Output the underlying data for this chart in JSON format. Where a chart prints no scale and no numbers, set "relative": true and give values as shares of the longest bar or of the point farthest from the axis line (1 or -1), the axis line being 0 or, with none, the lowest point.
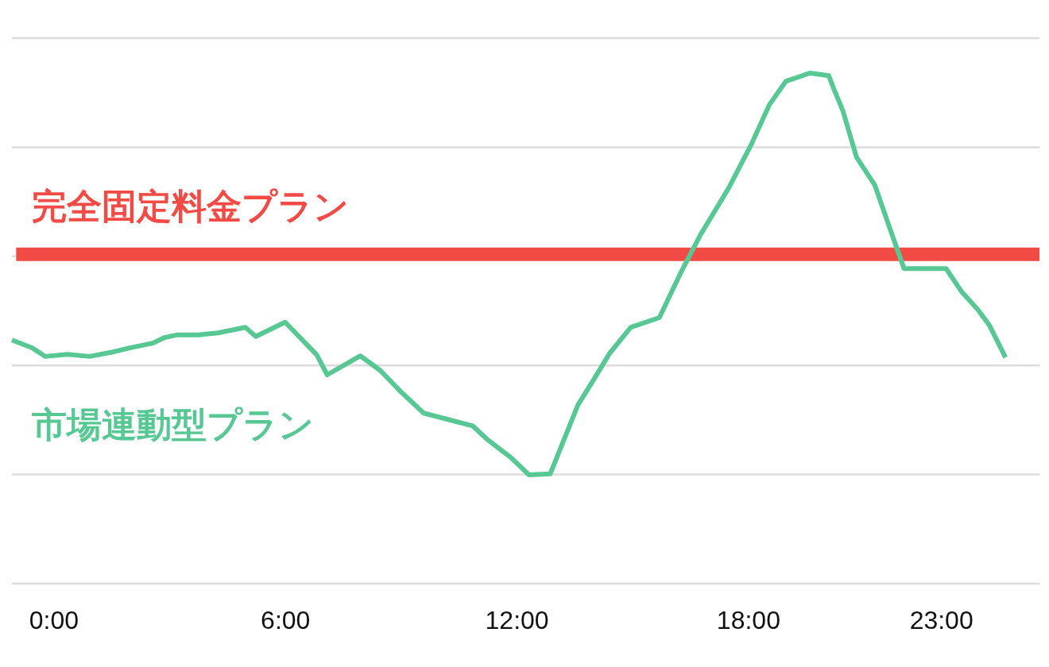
{
  "chart_data": {
    "type": "line",
    "relative": true,
    "grid": true,
    "x": [
      -1.09,
      -0.57,
      -0.23,
      0.35,
      0.92,
      1.48,
      1.99,
      2.56,
      2.87,
      3.18,
      3.73,
      4.25,
      4.96,
      5.23,
      5.99,
      6.81,
      7.08,
      7.94,
      8.45,
      8.96,
      9.58,
      10.85,
      11.22,
      11.84,
      12.31,
      12.86,
      13.58,
      13.99,
      14.4,
      14.95,
      15.69,
      16.25,
      16.76,
      17.48,
      18.09,
      18.54,
      18.97,
      19.59,
      20.08,
      20.21,
      20.45,
      20.8,
      21.27,
      21.68,
      22.03,
      23.12,
      23.53,
      23.94,
      24.25,
      24.66
    ],
    "series": [
      {
        "name": "完全固定料金プラン",
        "color": "#f24a45",
        "x": [
          -0.98,
          25.54
        ],
        "values": [
          0.645,
          0.645
        ]
      },
      {
        "name": "市場連動型プラン",
        "color": "#57c893",
        "values": [
          0.477,
          0.462,
          0.445,
          0.449,
          0.445,
          0.453,
          0.462,
          0.471,
          0.482,
          0.487,
          0.487,
          0.491,
          0.502,
          0.484,
          0.512,
          0.448,
          0.409,
          0.446,
          0.418,
          0.378,
          0.334,
          0.309,
          0.283,
          0.247,
          0.213,
          0.215,
          0.35,
          0.4,
          0.451,
          0.502,
          0.521,
          0.61,
          0.684,
          0.774,
          0.863,
          0.938,
          0.984,
          1.0,
          0.995,
          0.969,
          0.925,
          0.835,
          0.781,
          0.692,
          0.617,
          0.617,
          0.571,
          0.537,
          0.505,
          0.443
        ]
      }
    ],
    "xlim": [
      -1.09,
      25.54
    ],
    "xticks": [
      {
        "value": 0,
        "label": "0:00"
      },
      {
        "value": 6,
        "label": "6:00"
      },
      {
        "value": 12,
        "label": "12:00"
      },
      {
        "value": 18,
        "label": "18:00"
      },
      {
        "value": 23,
        "label": "23:00"
      }
    ]
  }
}
